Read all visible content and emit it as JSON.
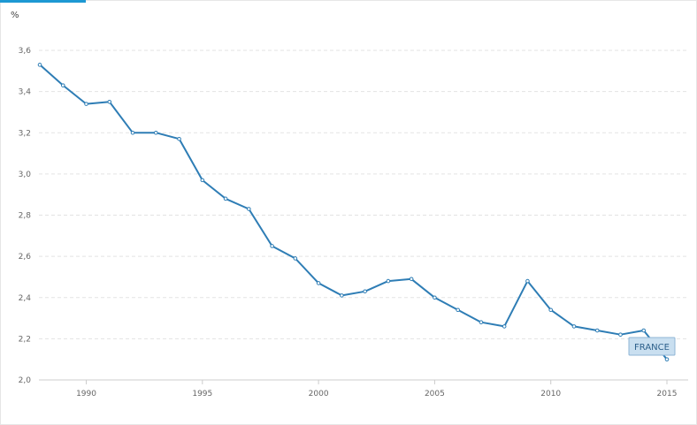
{
  "chart_data": {
    "type": "line",
    "ylabel": "%",
    "ylim": [
      2.0,
      3.6
    ],
    "yticks": [
      "2,0",
      "2,2",
      "2,4",
      "2,6",
      "2,8",
      "3,0",
      "3,2",
      "3,4",
      "3,6"
    ],
    "xlim": [
      1988,
      2016
    ],
    "xticks": [
      "1990",
      "1995",
      "2000",
      "2005",
      "2010",
      "2015"
    ],
    "grid": true,
    "series": [
      {
        "name": "FRANCE",
        "color": "#2e7db5",
        "x": [
          1988,
          1989,
          1990,
          1991,
          1992,
          1993,
          1994,
          1995,
          1996,
          1997,
          1998,
          1999,
          2000,
          2001,
          2002,
          2003,
          2004,
          2005,
          2006,
          2007,
          2008,
          2009,
          2010,
          2011,
          2012,
          2013,
          2014,
          2015
        ],
        "values": [
          3.53,
          3.43,
          3.34,
          3.35,
          3.2,
          3.2,
          3.17,
          2.97,
          2.88,
          2.83,
          2.65,
          2.59,
          2.47,
          2.41,
          2.43,
          2.48,
          2.49,
          2.4,
          2.34,
          2.28,
          2.26,
          2.48,
          2.34,
          2.26,
          2.24,
          2.22,
          2.24,
          2.1
        ]
      }
    ]
  }
}
